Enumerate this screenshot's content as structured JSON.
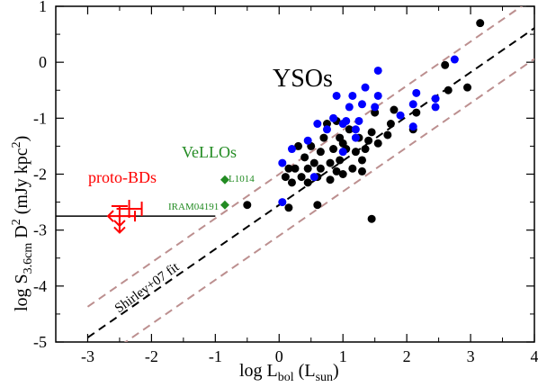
{
  "chart_data": {
    "type": "scatter",
    "xlabel": "log L",
    "xlabel_sub": "bol",
    "xlabel_unit_open": " (L",
    "xlabel_unit_sub": "sun",
    "xlabel_unit_close": ")",
    "ylabel": "log S",
    "ylabel_sub": "3.6cm",
    "ylabel_mid": " D",
    "ylabel_sup": "2",
    "ylabel_unit_open": " (mJy kpc",
    "ylabel_unit_sup": "2",
    "ylabel_unit_close": ")",
    "xlim": [
      -3.5,
      4
    ],
    "ylim": [
      -5,
      1
    ],
    "x_ticks": [
      -3,
      -2,
      -1,
      0,
      1,
      2,
      3,
      4
    ],
    "y_ticks": [
      -5,
      -4,
      -3,
      -2,
      -1,
      0,
      1
    ],
    "grid": false,
    "annotations": {
      "ysos": "YSOs",
      "vellos": "VeLLOs",
      "proto_bds": "proto-BDs",
      "l1014": "L1014",
      "iram": "IRAM04191",
      "fit": "Shirley+07 fit"
    },
    "colors": {
      "black": "#000000",
      "blue": "#0000ff",
      "green": "#228b22",
      "red": "#ff0000",
      "dashed_band": "#bc8f8f"
    },
    "fit_line": {
      "intercept": -2.55,
      "slope": 0.79,
      "x_range": [
        -3,
        4
      ]
    },
    "band_lines": {
      "offset": 0.55
    },
    "horizontal_line": {
      "y": -2.75,
      "x_range": [
        -3.5,
        -1.0
      ]
    },
    "series": [
      {
        "marker": "circle",
        "color": "black",
        "points": [
          [
            3.15,
            0.7
          ],
          [
            2.95,
            -0.45
          ],
          [
            2.6,
            -0.05
          ],
          [
            2.65,
            -0.5
          ],
          [
            2.15,
            -0.9
          ],
          [
            2.1,
            -1.2
          ],
          [
            1.8,
            -0.85
          ],
          [
            1.7,
            -1.3
          ],
          [
            1.5,
            -0.9
          ],
          [
            1.45,
            -1.25
          ],
          [
            1.4,
            -1.4
          ],
          [
            1.35,
            -1.55
          ],
          [
            1.3,
            -1.75
          ],
          [
            1.25,
            -1.35
          ],
          [
            1.2,
            -1.6
          ],
          [
            1.15,
            -1.9
          ],
          [
            1.1,
            -1.2
          ],
          [
            1.05,
            -1.55
          ],
          [
            1.0,
            -1.45
          ],
          [
            0.95,
            -1.35
          ],
          [
            0.95,
            -1.75
          ],
          [
            0.9,
            -1.05
          ],
          [
            0.85,
            -1.55
          ],
          [
            0.8,
            -1.8
          ],
          [
            0.75,
            -1.1
          ],
          [
            0.7,
            -1.35
          ],
          [
            0.65,
            -1.6
          ],
          [
            0.65,
            -1.9
          ],
          [
            0.6,
            -2.05
          ],
          [
            0.55,
            -1.8
          ],
          [
            0.5,
            -1.5
          ],
          [
            0.45,
            -1.9
          ],
          [
            0.45,
            -2.15
          ],
          [
            0.4,
            -1.7
          ],
          [
            0.35,
            -2.05
          ],
          [
            0.3,
            -1.5
          ],
          [
            0.25,
            -1.9
          ],
          [
            0.2,
            -2.15
          ],
          [
            0.15,
            -1.9
          ],
          [
            0.1,
            -2.05
          ],
          [
            0.6,
            -2.55
          ],
          [
            0.8,
            -2.1
          ],
          [
            0.9,
            -1.95
          ],
          [
            1.0,
            -2.0
          ],
          [
            1.3,
            -1.95
          ],
          [
            1.45,
            -2.8
          ],
          [
            0.15,
            -2.6
          ],
          [
            -0.5,
            -2.55
          ],
          [
            1.75,
            -1.1
          ],
          [
            1.55,
            -1.45
          ]
        ]
      },
      {
        "marker": "circle",
        "color": "blue",
        "points": [
          [
            2.75,
            0.05
          ],
          [
            2.45,
            -0.65
          ],
          [
            2.15,
            -0.55
          ],
          [
            2.1,
            -0.75
          ],
          [
            2.45,
            -0.8
          ],
          [
            1.9,
            -0.95
          ],
          [
            1.55,
            -0.15
          ],
          [
            1.55,
            -0.6
          ],
          [
            1.5,
            -0.8
          ],
          [
            1.35,
            -0.45
          ],
          [
            1.3,
            -0.75
          ],
          [
            1.25,
            -1.05
          ],
          [
            1.2,
            -1.2
          ],
          [
            1.15,
            -0.6
          ],
          [
            1.1,
            -0.8
          ],
          [
            1.05,
            -1.05
          ],
          [
            1.0,
            -1.1
          ],
          [
            0.9,
            -0.6
          ],
          [
            0.85,
            -1.0
          ],
          [
            0.75,
            -1.2
          ],
          [
            0.6,
            -1.1
          ],
          [
            0.45,
            -1.4
          ],
          [
            0.2,
            -1.55
          ],
          [
            0.05,
            -1.8
          ],
          [
            0.05,
            -2.5
          ],
          [
            0.55,
            -2.05
          ],
          [
            1.0,
            -1.6
          ],
          [
            1.2,
            -1.35
          ],
          [
            2.1,
            -1.15
          ]
        ]
      },
      {
        "marker": "diamond",
        "color": "green",
        "points": [
          [
            -0.85,
            -2.1
          ],
          [
            -0.85,
            -2.55
          ]
        ]
      }
    ],
    "proto_bd_markers": [
      {
        "x": -2.5,
        "y": -2.7,
        "style": "lower-limit-arrow"
      },
      {
        "x": -2.35,
        "y": -2.62,
        "style": "error-cross"
      },
      {
        "x": -2.5,
        "y": -2.82,
        "style": "upper-limit-arrow"
      },
      {
        "x": -2.4,
        "y": -2.75,
        "style": "left-arrow"
      }
    ]
  }
}
